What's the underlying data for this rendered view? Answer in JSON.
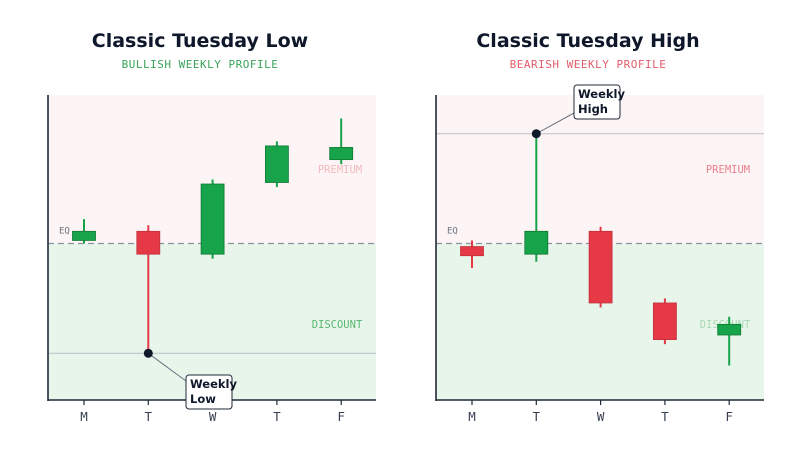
{
  "chart_data": [
    {
      "type": "candlestick",
      "title": "Classic Tuesday Low",
      "subtitle": "BULLISH WEEKLY PROFILE",
      "subtitle_color": "#3aa45a",
      "categories": [
        "M",
        "T",
        "W",
        "T",
        "F"
      ],
      "ylim": [
        0,
        100
      ],
      "eq_level": 50,
      "eq_label": "EQ",
      "premium_label": "PREMIUM",
      "discount_label": "DISCOUNT",
      "candles": [
        {
          "open": 51,
          "close": 54,
          "high": 58,
          "low": 50
        },
        {
          "open": 54,
          "close": 46.5,
          "high": 56,
          "low": 14
        },
        {
          "open": 46.5,
          "close": 69.5,
          "high": 71,
          "low": 45
        },
        {
          "open": 70,
          "close": 82,
          "high": 83.5,
          "low": 68.5
        },
        {
          "open": 77.5,
          "close": 81.5,
          "high": 91,
          "low": 76
        }
      ],
      "key_level": 14,
      "key_day_index": 1,
      "callout": [
        "Weekly",
        "Low"
      ]
    },
    {
      "type": "candlestick",
      "title": "Classic Tuesday High",
      "subtitle": "BEARISH WEEKLY PROFILE",
      "subtitle_color": "#e35d6a",
      "categories": [
        "M",
        "T",
        "W",
        "T",
        "F"
      ],
      "ylim": [
        0,
        100
      ],
      "eq_level": 50,
      "eq_label": "EQ",
      "premium_label": "PREMIUM",
      "discount_label": "DISCOUNT",
      "candles": [
        {
          "open": 49,
          "close": 46,
          "high": 51,
          "low": 42
        },
        {
          "open": 46.5,
          "close": 54,
          "high": 86,
          "low": 44
        },
        {
          "open": 54,
          "close": 30.5,
          "high": 55.5,
          "low": 29
        },
        {
          "open": 30.5,
          "close": 18.5,
          "high": 32,
          "low": 17
        },
        {
          "open": 20,
          "close": 23.5,
          "high": 26,
          "low": 10
        }
      ],
      "key_level": 86,
      "key_day_index": 1,
      "callout": [
        "Weekly",
        "High"
      ]
    }
  ],
  "colors": {
    "bull": "#16a34a",
    "bear": "#e63946",
    "premium_bg": "#fdf5f5",
    "discount_bg": "#e8f5eb",
    "axis": "#1f2937",
    "dark": "#0f172a"
  }
}
